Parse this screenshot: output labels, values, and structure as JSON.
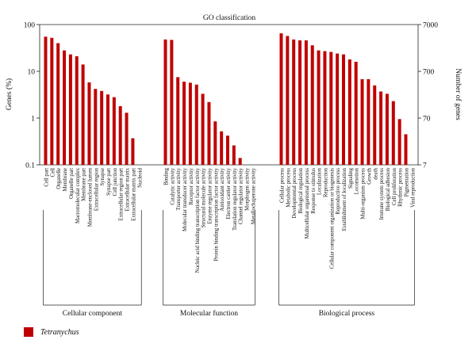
{
  "chart_data": {
    "type": "bar",
    "title": "GO classification",
    "ylabel_left": "Genes (%)",
    "ylabel_right": "Number of genes",
    "yscale": "log",
    "ylim_left": [
      0.1,
      100
    ],
    "left_ticks": [
      "100",
      "10",
      "1",
      "0.1"
    ],
    "right_ticks": [
      "7000",
      "700",
      "70",
      "7"
    ],
    "legend": {
      "placement": "bottom-left",
      "label": "Tetranychus",
      "color": "#c00000"
    },
    "groups": [
      {
        "name": "Cellular component",
        "categories": [
          "Cell part",
          "Cell",
          "Organelle",
          "Membrane",
          "Organelle part",
          "Macromolecular complex",
          "Membrane part",
          "Membrane-enclosed lumen",
          "Extracellular region",
          "Synapse",
          "Synapse part",
          "Cell junction",
          "Extracellular region part",
          "Extracellular matrix",
          "Extracellular matrix part",
          "Nucleoid"
        ],
        "values": [
          55,
          52,
          40,
          28,
          23,
          21,
          14,
          5.8,
          4.2,
          3.8,
          3.2,
          2.8,
          1.8,
          1.3,
          0.37,
          0
        ]
      },
      {
        "name": "Molecular function",
        "categories": [
          "Binding",
          "Catalytic activity",
          "Transporter activity",
          "Molecular transducer activity",
          "Receptor activity",
          "Nucleic acid binding transcription factor activity",
          "Structural molecule activity",
          "Enzyme regulator activity",
          "Protein binding transcription factor activity",
          "Antioxidant activity",
          "Electron carrier activity",
          "Translation regulator activity",
          "Channel regulator activity",
          "Morphogen activity",
          "Metallochaperone activity"
        ],
        "values": [
          48,
          47,
          7.5,
          6,
          5.7,
          5.2,
          3.3,
          2.2,
          0.85,
          0.52,
          0.42,
          0.26,
          0.14,
          0,
          0
        ]
      },
      {
        "name": "Biological process",
        "categories": [
          "Cellular process",
          "Metabolic process",
          "Developmental process",
          "Biological regulation",
          "Multicellular organismal process",
          "Response to stimulus",
          "Localization",
          "Reproduction",
          "Cellular component organization or biogenesis",
          "Reproductive process",
          "Establishment of localization",
          "Signaling",
          "Locomotion",
          "Multi-organism process",
          "Growth",
          "death",
          "Immune system process",
          "Biological adhesion",
          "Cell proliferation",
          "Rhythmic process",
          "Pigmentation",
          "Viral reproduction"
        ],
        "values": [
          65,
          57,
          48,
          46,
          46,
          36,
          28,
          27,
          26,
          24,
          23,
          18,
          16,
          6.8,
          6.8,
          5,
          3.7,
          3.3,
          2.3,
          0.95,
          0.45,
          0
        ]
      }
    ]
  }
}
